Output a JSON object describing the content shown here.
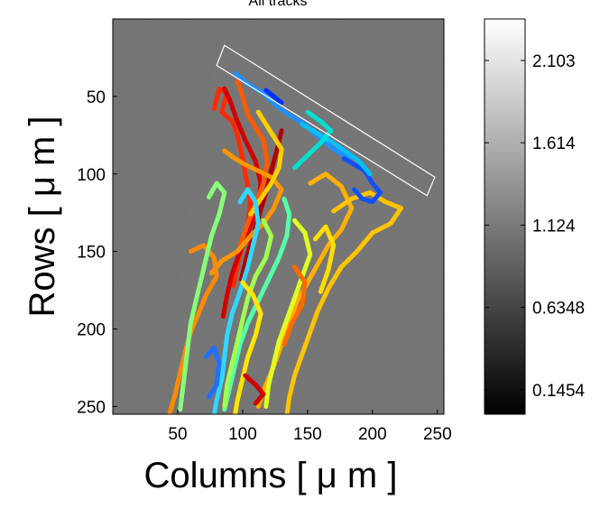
{
  "chart_data": {
    "type": "scatter",
    "title": "All tracks",
    "xlabel": "Columns [ μ m ]",
    "ylabel": "Rows [ μ m ]",
    "xlim": [
      0,
      255
    ],
    "ylim": [
      255,
      0
    ],
    "x_ticks": [
      50,
      100,
      150,
      200,
      250
    ],
    "y_ticks": [
      50,
      100,
      150,
      200,
      250
    ],
    "grid": false,
    "background": "grayscale microscopy image",
    "colorbar": {
      "colormap": "gray",
      "range": [
        0.0,
        2.35
      ],
      "ticks": [
        0.1454,
        0.6348,
        1.124,
        1.614,
        2.103
      ],
      "tick_labels": [
        "0.1454",
        "0.6348",
        "1.124",
        "1.614",
        "2.103"
      ]
    },
    "roi_rectangle": {
      "corners": [
        [
          86,
          17
        ],
        [
          248,
          102
        ],
        [
          242,
          114
        ],
        [
          80,
          30
        ]
      ],
      "color": "#ffffff"
    },
    "tracks": [
      {
        "color": "#ff2a00",
        "points": [
          [
            78,
            58
          ],
          [
            82,
            45
          ],
          [
            88,
            48
          ],
          [
            84,
            60
          ],
          [
            92,
            66
          ],
          [
            96,
            75
          ],
          [
            100,
            90
          ],
          [
            103,
            104
          ],
          [
            106,
            118
          ],
          [
            104,
            132
          ],
          [
            100,
            146
          ],
          [
            96,
            158
          ],
          [
            93,
            172
          ]
        ]
      },
      {
        "color": "#d10000",
        "points": [
          [
            86,
            45
          ],
          [
            90,
            52
          ],
          [
            95,
            64
          ],
          [
            102,
            78
          ],
          [
            110,
            92
          ],
          [
            114,
            106
          ],
          [
            112,
            120
          ],
          [
            106,
            134
          ],
          [
            98,
            150
          ],
          [
            92,
            164
          ],
          [
            88,
            178
          ],
          [
            85,
            192
          ]
        ]
      },
      {
        "color": "#b00000",
        "points": [
          [
            130,
            72
          ],
          [
            126,
            86
          ],
          [
            122,
            98
          ],
          [
            118,
            112
          ],
          [
            113,
            126
          ],
          [
            108,
            140
          ],
          [
            103,
            154
          ],
          [
            99,
            168
          ]
        ]
      },
      {
        "color": "#ff5a00",
        "points": [
          [
            96,
            40
          ],
          [
            100,
            50
          ],
          [
            104,
            62
          ],
          [
            110,
            70
          ],
          [
            116,
            78
          ],
          [
            119,
            92
          ],
          [
            116,
            106
          ],
          [
            110,
            120
          ],
          [
            104,
            132
          ],
          [
            98,
            146
          ]
        ]
      },
      {
        "color": "#ff9600",
        "points": [
          [
            86,
            85
          ],
          [
            94,
            90
          ],
          [
            102,
            94
          ],
          [
            112,
            98
          ],
          [
            122,
            102
          ],
          [
            130,
            110
          ],
          [
            124,
            122
          ],
          [
            116,
            132
          ],
          [
            106,
            140
          ],
          [
            96,
            150
          ],
          [
            84,
            156
          ],
          [
            76,
            164
          ]
        ]
      },
      {
        "color": "#ffd000",
        "points": [
          [
            112,
            60
          ],
          [
            118,
            68
          ],
          [
            124,
            76
          ],
          [
            130,
            84
          ],
          [
            128,
            96
          ],
          [
            122,
            106
          ],
          [
            114,
            116
          ],
          [
            106,
            126
          ]
        ]
      },
      {
        "color": "#ffb000",
        "points": [
          [
            152,
            106
          ],
          [
            164,
            100
          ],
          [
            176,
            108
          ],
          [
            184,
            122
          ],
          [
            176,
            136
          ],
          [
            166,
            146
          ],
          [
            158,
            158
          ],
          [
            150,
            170
          ],
          [
            142,
            182
          ],
          [
            136,
            196
          ],
          [
            130,
            210
          ],
          [
            124,
            224
          ],
          [
            118,
            236
          ],
          [
            112,
            250
          ]
        ]
      },
      {
        "color": "#ffc400",
        "points": [
          [
            170,
            124
          ],
          [
            184,
            116
          ],
          [
            198,
            112
          ],
          [
            210,
            118
          ],
          [
            222,
            122
          ],
          [
            214,
            132
          ],
          [
            200,
            138
          ],
          [
            188,
            150
          ],
          [
            176,
            160
          ],
          [
            166,
            174
          ],
          [
            158,
            188
          ],
          [
            152,
            202
          ],
          [
            146,
            216
          ],
          [
            140,
            230
          ],
          [
            136,
            244
          ],
          [
            134,
            256
          ]
        ]
      },
      {
        "color": "#ff8a00",
        "points": [
          [
            60,
            150
          ],
          [
            70,
            146
          ],
          [
            78,
            154
          ],
          [
            80,
            166
          ],
          [
            72,
            178
          ],
          [
            66,
            190
          ],
          [
            60,
            202
          ],
          [
            56,
            214
          ],
          [
            52,
            228
          ],
          [
            48,
            242
          ],
          [
            44,
            254
          ]
        ]
      },
      {
        "color": "#88ff78",
        "points": [
          [
            74,
            115
          ],
          [
            80,
            106
          ],
          [
            86,
            112
          ],
          [
            82,
            126
          ],
          [
            76,
            140
          ],
          [
            72,
            154
          ],
          [
            68,
            168
          ],
          [
            64,
            182
          ],
          [
            60,
            196
          ],
          [
            58,
            210
          ],
          [
            56,
            224
          ],
          [
            54,
            238
          ],
          [
            52,
            252
          ]
        ]
      },
      {
        "color": "#30d8ff",
        "points": [
          [
            98,
            118
          ],
          [
            104,
            110
          ],
          [
            110,
            118
          ],
          [
            112,
            132
          ],
          [
            108,
            146
          ],
          [
            104,
            160
          ],
          [
            98,
            176
          ],
          [
            92,
            190
          ],
          [
            88,
            204
          ],
          [
            86,
            218
          ],
          [
            84,
            232
          ],
          [
            80,
            246
          ],
          [
            78,
            256
          ]
        ]
      },
      {
        "color": "#55ffaa",
        "points": [
          [
            132,
            116
          ],
          [
            136,
            126
          ],
          [
            134,
            140
          ],
          [
            128,
            154
          ],
          [
            120,
            168
          ],
          [
            112,
            182
          ],
          [
            104,
            196
          ],
          [
            98,
            210
          ],
          [
            94,
            224
          ],
          [
            90,
            238
          ],
          [
            86,
            252
          ]
        ]
      },
      {
        "color": "#a0ff50",
        "points": [
          [
            116,
            130
          ],
          [
            122,
            140
          ],
          [
            118,
            154
          ],
          [
            110,
            166
          ],
          [
            104,
            180
          ],
          [
            100,
            194
          ],
          [
            96,
            208
          ],
          [
            92,
            222
          ],
          [
            88,
            236
          ],
          [
            86,
            250
          ]
        ]
      },
      {
        "color": "#ffe600",
        "points": [
          [
            100,
            170
          ],
          [
            108,
            178
          ],
          [
            114,
            190
          ],
          [
            110,
            204
          ],
          [
            104,
            218
          ],
          [
            100,
            232
          ],
          [
            96,
            246
          ],
          [
            94,
            256
          ]
        ]
      },
      {
        "color": "#e0ff20",
        "points": [
          [
            140,
            130
          ],
          [
            148,
            138
          ],
          [
            152,
            152
          ],
          [
            146,
            166
          ],
          [
            140,
            180
          ],
          [
            134,
            194
          ],
          [
            128,
            208
          ],
          [
            124,
            222
          ],
          [
            120,
            236
          ],
          [
            118,
            250
          ]
        ]
      },
      {
        "color": "#2090ff",
        "points": [
          [
            94,
            35
          ],
          [
            104,
            42
          ],
          [
            116,
            48
          ],
          [
            126,
            56
          ],
          [
            136,
            62
          ],
          [
            148,
            68
          ],
          [
            158,
            76
          ],
          [
            170,
            84
          ],
          [
            182,
            90
          ]
        ]
      },
      {
        "color": "#0030ff",
        "points": [
          [
            118,
            46
          ],
          [
            124,
            50
          ],
          [
            130,
            54
          ]
        ]
      },
      {
        "color": "#1050ff",
        "points": [
          [
            178,
            90
          ],
          [
            186,
            94
          ],
          [
            194,
            98
          ],
          [
            200,
            106
          ],
          [
            206,
            112
          ],
          [
            200,
            118
          ],
          [
            192,
            116
          ],
          [
            186,
            110
          ]
        ]
      },
      {
        "color": "#00c0ff",
        "points": [
          [
            146,
            68
          ],
          [
            158,
            74
          ],
          [
            170,
            80
          ],
          [
            180,
            86
          ],
          [
            190,
            92
          ],
          [
            198,
            100
          ]
        ]
      },
      {
        "color": "#00e0d0",
        "points": [
          [
            150,
            60
          ],
          [
            160,
            66
          ],
          [
            168,
            72
          ],
          [
            160,
            80
          ],
          [
            150,
            88
          ],
          [
            140,
            96
          ]
        ]
      },
      {
        "color": "#2070ff",
        "points": [
          [
            72,
            218
          ],
          [
            78,
            212
          ],
          [
            82,
            222
          ],
          [
            80,
            236
          ],
          [
            74,
            244
          ]
        ]
      },
      {
        "color": "#d00000",
        "points": [
          [
            102,
            230
          ],
          [
            110,
            236
          ],
          [
            116,
            242
          ],
          [
            110,
            248
          ]
        ]
      },
      {
        "color": "#ff6a00",
        "points": [
          [
            140,
            160
          ],
          [
            148,
            170
          ],
          [
            146,
            184
          ],
          [
            138,
            196
          ],
          [
            132,
            210
          ]
        ]
      },
      {
        "color": "#ffde00",
        "points": [
          [
            156,
            142
          ],
          [
            164,
            134
          ],
          [
            170,
            146
          ],
          [
            166,
            162
          ],
          [
            160,
            176
          ]
        ]
      }
    ]
  }
}
